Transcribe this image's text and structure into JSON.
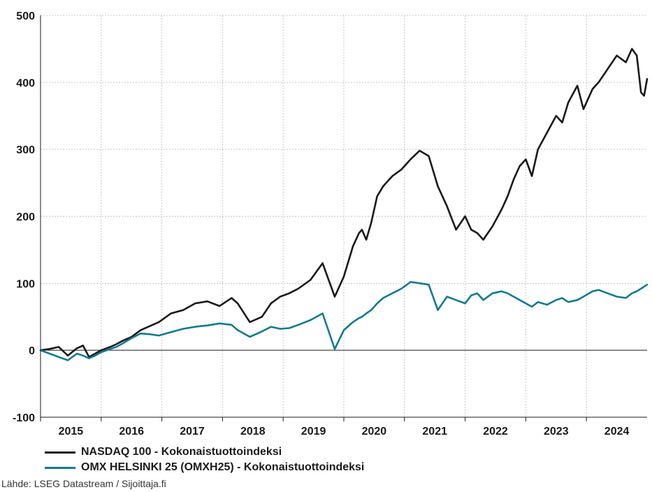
{
  "chart_data": {
    "type": "line",
    "title": "",
    "xlabel": "",
    "ylabel": "",
    "ylim": [
      -100,
      500
    ],
    "yticks": [
      -100,
      0,
      100,
      200,
      300,
      400,
      500
    ],
    "xlim": [
      2014.85,
      2024.85
    ],
    "xtick_labels": [
      "2015",
      "2016",
      "2017",
      "2018",
      "2019",
      "2020",
      "2021",
      "2022",
      "2023",
      "2024"
    ],
    "grid": true,
    "legend": "bottom",
    "series": [
      {
        "name": "NASDAQ 100 - Kokonaistuottoindeksi",
        "color": "#1a1a1a",
        "x": [
          2014.85,
          2015.0,
          2015.15,
          2015.3,
          2015.45,
          2015.55,
          2015.65,
          2015.75,
          2015.85,
          2016.0,
          2016.1,
          2016.2,
          2016.35,
          2016.5,
          2016.65,
          2016.8,
          2017.0,
          2017.2,
          2017.4,
          2017.6,
          2017.8,
          2018.0,
          2018.1,
          2018.3,
          2018.5,
          2018.65,
          2018.8,
          2018.95,
          2019.1,
          2019.3,
          2019.5,
          2019.7,
          2019.85,
          2020.0,
          2020.1,
          2020.15,
          2020.22,
          2020.3,
          2020.4,
          2020.5,
          2020.65,
          2020.8,
          2020.95,
          2021.1,
          2021.25,
          2021.4,
          2021.55,
          2021.7,
          2021.85,
          2021.95,
          2022.05,
          2022.15,
          2022.3,
          2022.45,
          2022.55,
          2022.65,
          2022.75,
          2022.85,
          2022.95,
          2023.05,
          2023.2,
          2023.35,
          2023.45,
          2023.55,
          2023.7,
          2023.8,
          2023.95,
          2024.05,
          2024.2,
          2024.35,
          2024.5,
          2024.6,
          2024.68,
          2024.75,
          2024.8,
          2024.85
        ],
        "values": [
          0,
          2,
          5,
          -8,
          3,
          7,
          -10,
          -5,
          0,
          5,
          9,
          14,
          20,
          30,
          36,
          42,
          55,
          60,
          70,
          73,
          66,
          78,
          70,
          42,
          50,
          70,
          80,
          85,
          92,
          105,
          130,
          80,
          110,
          155,
          175,
          180,
          165,
          190,
          230,
          245,
          260,
          270,
          285,
          298,
          290,
          245,
          215,
          180,
          200,
          180,
          175,
          165,
          185,
          210,
          230,
          255,
          275,
          285,
          260,
          300,
          325,
          350,
          340,
          370,
          395,
          360,
          390,
          400,
          420,
          440,
          430,
          450,
          440,
          385,
          380,
          405
        ]
      },
      {
        "name": "OMX HELSINKI 25 (OMXH25) - Kokonaistuottoindeksi",
        "color": "#147a8c",
        "x": [
          2014.85,
          2015.0,
          2015.15,
          2015.3,
          2015.45,
          2015.55,
          2015.65,
          2015.75,
          2015.85,
          2016.0,
          2016.1,
          2016.2,
          2016.35,
          2016.5,
          2016.65,
          2016.8,
          2017.0,
          2017.2,
          2017.4,
          2017.6,
          2017.8,
          2018.0,
          2018.1,
          2018.3,
          2018.5,
          2018.65,
          2018.8,
          2018.95,
          2019.1,
          2019.3,
          2019.5,
          2019.7,
          2019.85,
          2020.0,
          2020.1,
          2020.15,
          2020.22,
          2020.3,
          2020.4,
          2020.5,
          2020.65,
          2020.8,
          2020.95,
          2021.1,
          2021.25,
          2021.4,
          2021.55,
          2021.7,
          2021.85,
          2021.95,
          2022.05,
          2022.15,
          2022.3,
          2022.45,
          2022.55,
          2022.65,
          2022.75,
          2022.85,
          2022.95,
          2023.05,
          2023.2,
          2023.35,
          2023.45,
          2023.55,
          2023.7,
          2023.8,
          2023.95,
          2024.05,
          2024.2,
          2024.35,
          2024.5,
          2024.6,
          2024.68,
          2024.75,
          2024.8,
          2024.85
        ],
        "values": [
          0,
          -5,
          -10,
          -15,
          -5,
          -8,
          -12,
          -8,
          -3,
          2,
          5,
          10,
          18,
          25,
          24,
          22,
          27,
          32,
          35,
          37,
          40,
          38,
          30,
          20,
          28,
          35,
          32,
          33,
          38,
          45,
          55,
          2,
          30,
          42,
          48,
          50,
          55,
          60,
          70,
          78,
          85,
          92,
          102,
          100,
          98,
          60,
          80,
          75,
          70,
          82,
          85,
          75,
          85,
          88,
          85,
          80,
          75,
          70,
          65,
          72,
          68,
          75,
          78,
          72,
          75,
          80,
          88,
          90,
          85,
          80,
          78,
          85,
          88,
          92,
          95,
          98
        ]
      }
    ]
  },
  "legend": {
    "items": [
      {
        "label": "NASDAQ 100 - Kokonaistuottoindeksi",
        "color": "#1a1a1a"
      },
      {
        "label": "OMX HELSINKI 25 (OMXH25) - Kokonaistuottoindeksi",
        "color": "#147a8c"
      }
    ]
  },
  "source": "Lähde: LSEG Datastream / Sijoittaja.fi"
}
